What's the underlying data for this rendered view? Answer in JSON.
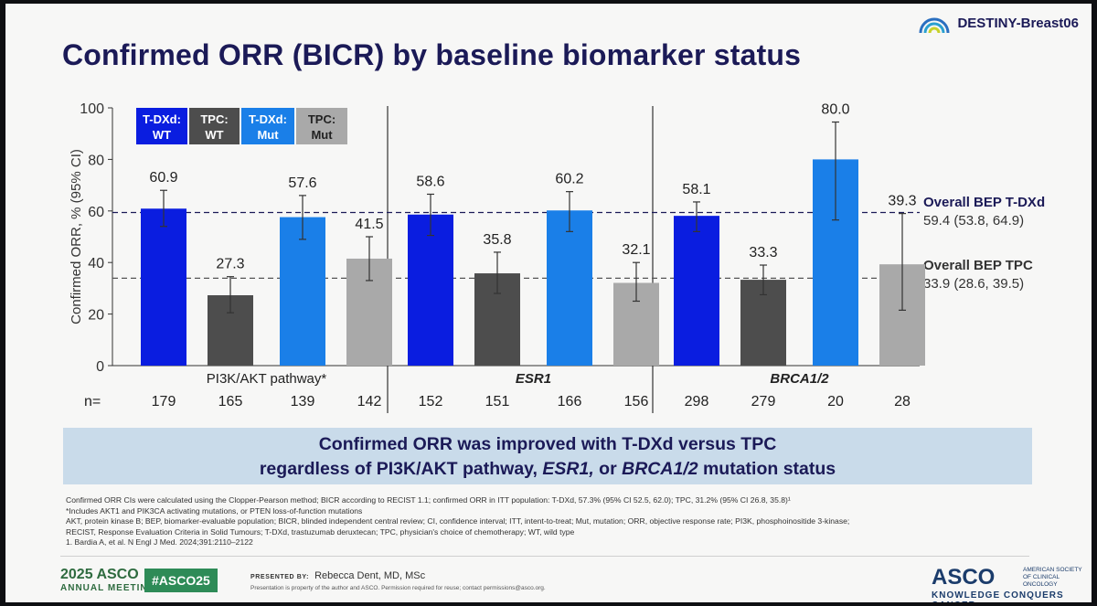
{
  "slide": {
    "title": "Confirmed ORR (BICR) by baseline biomarker status",
    "brand": "DESTINY-Breast06"
  },
  "colors": {
    "tdxd_wt": "#0a1de0",
    "tpc_wt": "#4d4d4d",
    "tdxd_mut": "#1a7fe8",
    "tpc_mut": "#a9a9a9",
    "navy": "#1b1a57"
  },
  "chart_data": {
    "type": "bar",
    "ylabel": "Confirmed ORR, % (95% CI)",
    "ylim": [
      0,
      100
    ],
    "yticks": [
      0,
      20,
      40,
      60,
      80,
      100
    ],
    "legend": [
      "T-DXd: WT",
      "TPC: WT",
      "T-DXd: Mut",
      "TPC: Mut"
    ],
    "legend_placement": "top-left",
    "n_label": "n=",
    "groups": [
      {
        "name": "PI3K/AKT pathway*",
        "bars": [
          {
            "series": "T-DXd: WT",
            "value": 60.9,
            "label": "60.9",
            "ci": [
              54,
              68
            ],
            "n": "179"
          },
          {
            "series": "TPC: WT",
            "value": 27.3,
            "label": "27.3",
            "ci": [
              20.5,
              34.5
            ],
            "n": "165"
          },
          {
            "series": "T-DXd: Mut",
            "value": 57.6,
            "label": "57.6",
            "ci": [
              49,
              66
            ],
            "n": "139"
          },
          {
            "series": "TPC: Mut",
            "value": 41.5,
            "label": "41.5",
            "ci": [
              33,
              50
            ],
            "n": "142"
          }
        ]
      },
      {
        "name": "ESR1",
        "bars": [
          {
            "series": "T-DXd: WT",
            "value": 58.6,
            "label": "58.6",
            "ci": [
              50.5,
              66.5
            ],
            "n": "152"
          },
          {
            "series": "TPC: WT",
            "value": 35.8,
            "label": "35.8",
            "ci": [
              28,
              44
            ],
            "n": "151"
          },
          {
            "series": "T-DXd: Mut",
            "value": 60.2,
            "label": "60.2",
            "ci": [
              52,
              67.5
            ],
            "n": "166"
          },
          {
            "series": "TPC: Mut",
            "value": 32.1,
            "label": "32.1",
            "ci": [
              25,
              40
            ],
            "n": "156"
          }
        ]
      },
      {
        "name": "BRCA1/2",
        "bars": [
          {
            "series": "T-DXd: WT",
            "value": 58.1,
            "label": "58.1",
            "ci": [
              52,
              63.5
            ],
            "n": "298"
          },
          {
            "series": "TPC: WT",
            "value": 33.3,
            "label": "33.3",
            "ci": [
              27.5,
              39
            ],
            "n": "279"
          },
          {
            "series": "T-DXd: Mut",
            "value": 80.0,
            "label": "80.0",
            "ci": [
              56.5,
              94.5
            ],
            "n": "20"
          },
          {
            "series": "TPC: Mut",
            "value": 39.3,
            "label": "39.3",
            "ci": [
              21.5,
              59
            ],
            "n": "28"
          }
        ]
      }
    ],
    "reference_lines": [
      {
        "name": "Overall BEP T-DXd",
        "value": 59.4,
        "text": "59.4 (53.8, 64.9)"
      },
      {
        "name": "Overall BEP TPC",
        "value": 33.9,
        "text": "33.9 (28.6, 39.5)"
      }
    ]
  },
  "callout": {
    "line1": "Confirmed ORR was improved with T-DXd versus TPC",
    "line2_a": "regardless of PI3K/AKT pathway, ",
    "line2_b": "ESR1,",
    "line2_c": " or ",
    "line2_d": "BRCA1/2",
    "line2_e": " mutation status"
  },
  "footnotes": {
    "l1": "Confirmed ORR CIs were calculated using the Clopper-Pearson method; BICR according to RECIST 1.1; confirmed ORR in ITT population: T-DXd, 57.3% (95% CI 52.5, 62.0); TPC, 31.2% (95% CI 26.8, 35.8)¹",
    "l2": "*Includes AKT1 and PIK3CA activating mutations, or PTEN loss-of-function mutations",
    "l3": "AKT, protein kinase B; BEP, biomarker-evaluable population; BICR, blinded independent central review; CI, confidence interval; ITT, intent-to-treat; Mut, mutation; ORR, objective response rate; PI3K, phosphoinositide 3-kinase;",
    "l4": "RECIST, Response Evaluation Criteria in Solid Tumours; T-DXd, trastuzumab deruxtecan; TPC, physician's choice of chemotherapy; WT, wild type",
    "l5": "1. Bardia A, et al. N Engl J Med. 2024;391:2110–2122"
  },
  "footer": {
    "meeting_year": "2025 ASCO",
    "meeting_sub": "ANNUAL MEETING",
    "hashtag": "#ASCO25",
    "presented_by": "PRESENTED BY:",
    "presenter": "Rebecca Dent, MD, MSc",
    "property": "Presentation is property of the author and ASCO. Permission required for reuse; contact permissions@asco.org.",
    "asco": "ASCO",
    "society": "AMERICAN SOCIETY OF CLINICAL ONCOLOGY",
    "tagline": "KNOWLEDGE CONQUERS CANCER"
  }
}
